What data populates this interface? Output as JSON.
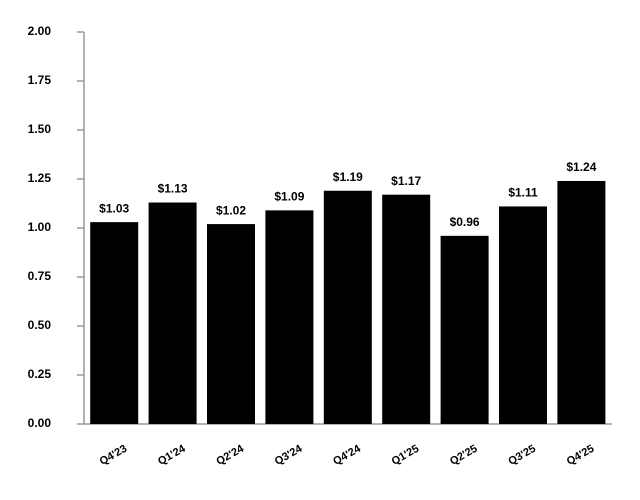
{
  "chart_data": {
    "type": "bar",
    "categories": [
      "Q4'23",
      "Q1'24",
      "Q2'24",
      "Q3'24",
      "Q4'24",
      "Q1'25",
      "Q2'25",
      "Q3'25",
      "Q4'25"
    ],
    "values": [
      1.03,
      1.13,
      1.02,
      1.09,
      1.19,
      1.17,
      0.96,
      1.11,
      1.24
    ],
    "value_labels": [
      "$1.03",
      "$1.13",
      "$1.02",
      "$1.09",
      "$1.19",
      "$1.17",
      "$0.96",
      "$1.11",
      "$1.24"
    ],
    "color": "#000000",
    "ylim": [
      0,
      2
    ],
    "yticks": [
      {
        "value": 0,
        "label": "0.00"
      },
      {
        "value": 0.25,
        "label": "0.25"
      },
      {
        "value": 0.5,
        "label": "0.50"
      },
      {
        "value": 0.75,
        "label": "0.75"
      },
      {
        "value": 1,
        "label": "1.00"
      },
      {
        "value": 1.25,
        "label": "1.25"
      },
      {
        "value": 1.5,
        "label": "1.50"
      },
      {
        "value": 1.75,
        "label": "1.75"
      },
      {
        "value": 2,
        "label": "2.00"
      }
    ]
  }
}
